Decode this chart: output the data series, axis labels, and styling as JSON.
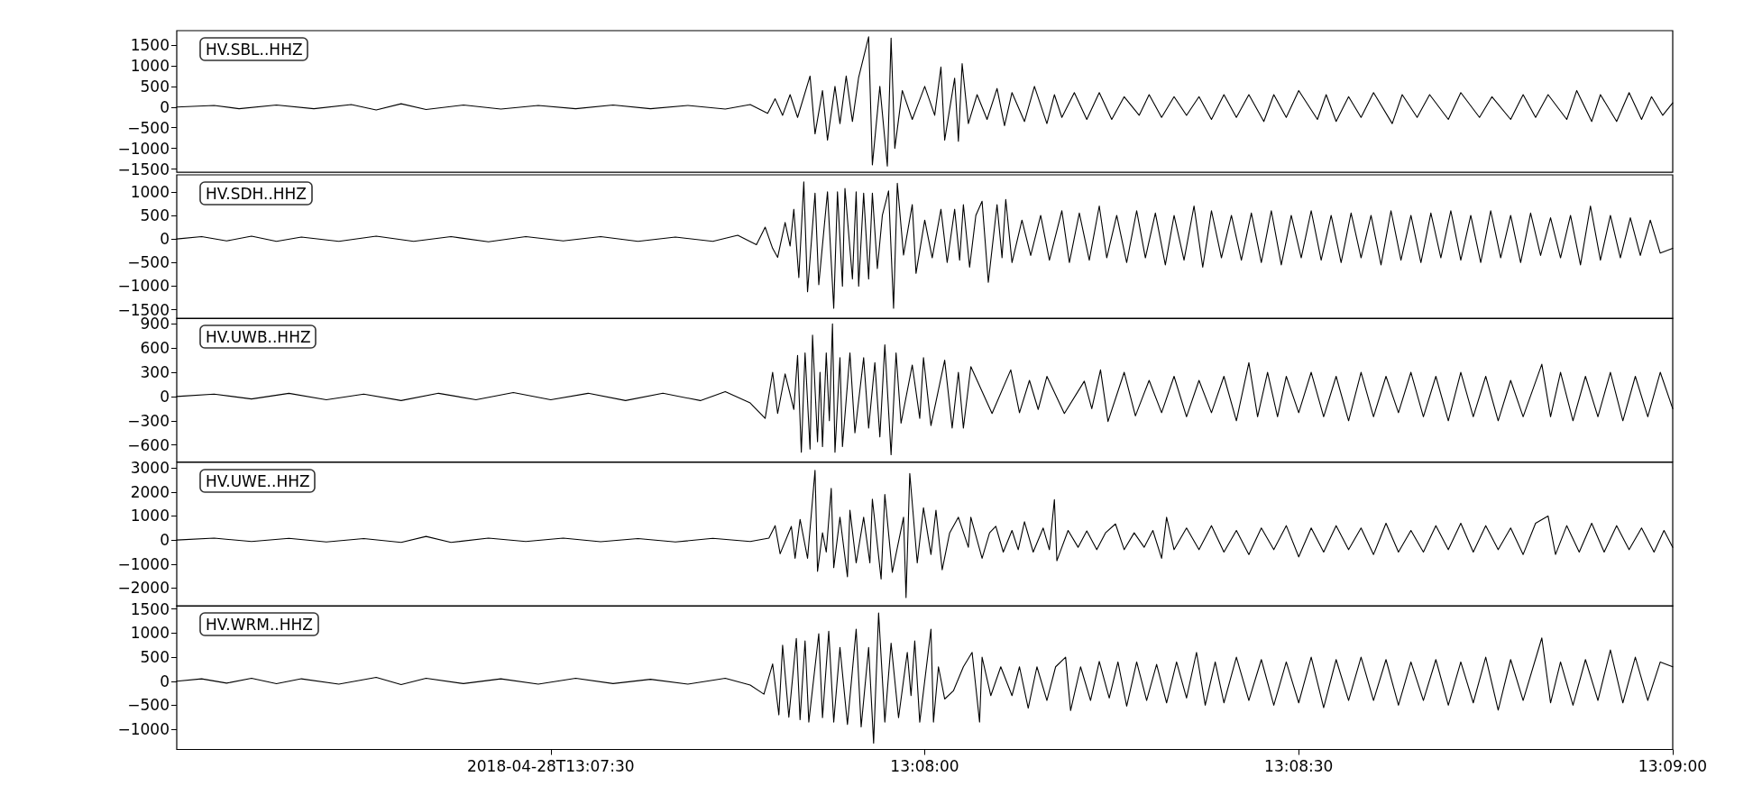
{
  "chart_data": [
    {
      "type": "line",
      "color": "#000000",
      "annotations": [
        "HV.SBL..HHZ"
      ],
      "tick_labels": "y",
      "xlim": [
        "2018-04-28T13:07:00",
        "2018-04-28T13:09:00"
      ],
      "ylim": [
        -1580,
        1850
      ],
      "yticks": [
        -1500,
        -1000,
        -500,
        0,
        500,
        1000,
        1500
      ],
      "x": [
        "2018-04-28T13:07:00",
        "2018-04-28T13:07:03",
        "2018-04-28T13:07:05",
        "2018-04-28T13:07:08",
        "2018-04-28T13:07:11",
        "2018-04-28T13:07:14",
        "2018-04-28T13:07:16",
        "2018-04-28T13:07:18",
        "2018-04-28T13:07:20",
        "2018-04-28T13:07:23",
        "2018-04-28T13:07:26",
        "2018-04-28T13:07:29",
        "2018-04-28T13:07:32",
        "2018-04-28T13:07:35",
        "2018-04-28T13:07:38",
        "2018-04-28T13:07:41",
        "2018-04-28T13:07:44",
        "2018-04-28T13:07:46",
        "2018-04-28T13:07:47.4",
        "2018-04-28T13:07:48",
        "2018-04-28T13:07:48.6",
        "2018-04-28T13:07:49.2",
        "2018-04-28T13:07:49.8",
        "2018-04-28T13:07:50.8",
        "2018-04-28T13:07:51.2",
        "2018-04-28T13:07:51.8",
        "2018-04-28T13:07:52.2",
        "2018-04-28T13:07:52.8",
        "2018-04-28T13:07:53.2",
        "2018-04-28T13:07:53.7",
        "2018-04-28T13:07:54.2",
        "2018-04-28T13:07:54.7",
        "2018-04-28T13:07:55.5",
        "2018-04-28T13:07:55.8",
        "2018-04-28T13:07:56.4",
        "2018-04-28T13:07:57",
        "2018-04-28T13:07:57.3",
        "2018-04-28T13:07:57.6",
        "2018-04-28T13:07:58.2",
        "2018-04-28T13:07:59",
        "2018-04-28T13:08:00",
        "2018-04-28T13:08:00.8",
        "2018-04-28T13:08:01.3",
        "2018-04-28T13:08:01.6",
        "2018-04-28T13:08:02.4",
        "2018-04-28T13:08:02.7",
        "2018-04-28T13:08:03",
        "2018-04-28T13:08:03.5",
        "2018-04-28T13:08:04.2",
        "2018-04-28T13:08:05",
        "2018-04-28T13:08:05.8",
        "2018-04-28T13:08:06.4",
        "2018-04-28T13:08:07",
        "2018-04-28T13:08:08",
        "2018-04-28T13:08:08.8",
        "2018-04-28T13:08:09.8",
        "2018-04-28T13:08:10.4",
        "2018-04-28T13:08:11",
        "2018-04-28T13:08:12",
        "2018-04-28T13:08:13",
        "2018-04-28T13:08:14",
        "2018-04-28T13:08:15",
        "2018-04-28T13:08:16",
        "2018-04-28T13:08:17.2",
        "2018-04-28T13:08:18",
        "2018-04-28T13:08:19",
        "2018-04-28T13:08:20",
        "2018-04-28T13:08:21",
        "2018-04-28T13:08:22",
        "2018-04-28T13:08:23",
        "2018-04-28T13:08:24",
        "2018-04-28T13:08:25",
        "2018-04-28T13:08:26",
        "2018-04-28T13:08:27.2",
        "2018-04-28T13:08:28",
        "2018-04-28T13:08:29",
        "2018-04-28T13:08:30",
        "2018-04-28T13:08:31.5",
        "2018-04-28T13:08:32.2",
        "2018-04-28T13:08:33",
        "2018-04-28T13:08:34",
        "2018-04-28T13:08:35",
        "2018-04-28T13:08:36",
        "2018-04-28T13:08:37.5",
        "2018-04-28T13:08:38.3",
        "2018-04-28T13:08:39.5",
        "2018-04-28T13:08:40.5",
        "2018-04-28T13:08:42",
        "2018-04-28T13:08:43",
        "2018-04-28T13:08:44.5",
        "2018-04-28T13:08:45.5",
        "2018-04-28T13:08:47",
        "2018-04-28T13:08:48",
        "2018-04-28T13:08:49",
        "2018-04-28T13:08:50",
        "2018-04-28T13:08:51.5",
        "2018-04-28T13:08:52.3",
        "2018-04-28T13:08:53.5",
        "2018-04-28T13:08:54.2",
        "2018-04-28T13:08:55.5",
        "2018-04-28T13:08:56.5",
        "2018-04-28T13:08:57.5",
        "2018-04-28T13:08:58.3",
        "2018-04-28T13:08:59.2",
        "2018-04-28T13:09:00"
      ],
      "values": [
        0,
        40,
        -40,
        50,
        -40,
        60,
        -70,
        80,
        -60,
        50,
        -50,
        40,
        -40,
        50,
        -40,
        40,
        -50,
        60,
        -150,
        200,
        -200,
        300,
        -250,
        750,
        -650,
        400,
        -800,
        500,
        -400,
        750,
        -350,
        720,
        1700,
        -1400,
        500,
        -1430,
        1670,
        -1000,
        400,
        -300,
        500,
        -200,
        970,
        -800,
        700,
        -830,
        1050,
        -400,
        300,
        -300,
        450,
        -450,
        350,
        -350,
        500,
        -400,
        300,
        -250,
        350,
        -300,
        350,
        -300,
        250,
        -200,
        300,
        -250,
        250,
        -200,
        250,
        -300,
        300,
        -250,
        300,
        -350,
        300,
        -250,
        400,
        -300,
        300,
        -350,
        250,
        -250,
        350,
        -400,
        300,
        -250,
        300,
        -300,
        350,
        -250,
        250,
        -300,
        300,
        -250,
        300,
        -300,
        400,
        -350,
        300,
        -350,
        350,
        -300,
        250,
        -200,
        100
      ]
    },
    {
      "type": "line",
      "color": "#000000",
      "annotations": [
        "HV.SDH..HHZ"
      ],
      "tick_labels": "y",
      "xlim": [
        "2018-04-28T13:07:00",
        "2018-04-28T13:09:00"
      ],
      "ylim": [
        -1690,
        1360
      ],
      "yticks": [
        -1500,
        -1000,
        -500,
        0,
        500,
        1000
      ],
      "x": [
        "2018-04-28T13:07:00",
        "2018-04-28T13:07:02",
        "2018-04-28T13:07:04",
        "2018-04-28T13:07:06",
        "2018-04-28T13:07:08",
        "2018-04-28T13:07:10",
        "2018-04-28T13:07:13",
        "2018-04-28T13:07:16",
        "2018-04-28T13:07:19",
        "2018-04-28T13:07:22",
        "2018-04-28T13:07:25",
        "2018-04-28T13:07:28",
        "2018-04-28T13:07:31",
        "2018-04-28T13:07:34",
        "2018-04-28T13:07:37",
        "2018-04-28T13:07:40",
        "2018-04-28T13:07:43",
        "2018-04-28T13:07:45",
        "2018-04-28T13:07:46.5",
        "2018-04-28T13:07:47.2",
        "2018-04-28T13:07:47.8",
        "2018-04-28T13:07:48.2",
        "2018-04-28T13:07:48.8",
        "2018-04-28T13:07:49.2",
        "2018-04-28T13:07:49.5",
        "2018-04-28T13:07:49.9",
        "2018-04-28T13:07:50.3",
        "2018-04-28T13:07:50.6",
        "2018-04-28T13:07:51.2",
        "2018-04-28T13:07:51.5",
        "2018-04-28T13:07:52.2",
        "2018-04-28T13:07:52.7",
        "2018-04-28T13:07:53",
        "2018-04-28T13:07:53.4",
        "2018-04-28T13:07:53.6",
        "2018-04-28T13:07:54.2",
        "2018-04-28T13:07:54.5",
        "2018-04-28T13:07:54.7",
        "2018-04-28T13:07:55.1",
        "2018-04-28T13:07:55.5",
        "2018-04-28T13:07:55.8",
        "2018-04-28T13:07:56.2",
        "2018-04-28T13:07:56.6",
        "2018-04-28T13:07:57.1",
        "2018-04-28T13:07:57.5",
        "2018-04-28T13:07:57.8",
        "2018-04-28T13:07:58.3",
        "2018-04-28T13:07:59",
        "2018-04-28T13:07:59.3",
        "2018-04-28T13:08:00",
        "2018-04-28T13:08:00.6",
        "2018-04-28T13:08:01.3",
        "2018-04-28T13:08:01.8",
        "2018-04-28T13:08:02.4",
        "2018-04-28T13:08:02.8",
        "2018-04-28T13:08:03.1",
        "2018-04-28T13:08:03.6",
        "2018-04-28T13:08:04.1",
        "2018-04-28T13:08:04.6",
        "2018-04-28T13:08:05.1",
        "2018-04-28T13:08:05.8",
        "2018-04-28T13:08:06.2",
        "2018-04-28T13:08:06.5",
        "2018-04-28T13:08:07",
        "2018-04-28T13:08:07.8",
        "2018-04-28T13:08:08.5",
        "2018-04-28T13:08:09.3",
        "2018-04-28T13:08:10",
        "2018-04-28T13:08:11",
        "2018-04-28T13:08:11.6",
        "2018-04-28T13:08:12.4",
        "2018-04-28T13:08:13.2",
        "2018-04-28T13:08:14",
        "2018-04-28T13:08:14.6",
        "2018-04-28T13:08:15.4",
        "2018-04-28T13:08:16.2",
        "2018-04-28T13:08:17",
        "2018-04-28T13:08:17.7",
        "2018-04-28T13:08:18.5",
        "2018-04-28T13:08:19.3",
        "2018-04-28T13:08:20",
        "2018-04-28T13:08:20.8",
        "2018-04-28T13:08:21.6",
        "2018-04-28T13:08:22.3",
        "2018-04-28T13:08:23",
        "2018-04-28T13:08:23.8",
        "2018-04-28T13:08:24.6",
        "2018-04-28T13:08:25.4",
        "2018-04-28T13:08:26.2",
        "2018-04-28T13:08:27",
        "2018-04-28T13:08:27.8",
        "2018-04-28T13:08:28.6",
        "2018-04-28T13:08:29.4",
        "2018-04-28T13:08:30.2",
        "2018-04-28T13:08:31",
        "2018-04-28T13:08:31.8",
        "2018-04-28T13:08:32.6",
        "2018-04-28T13:08:33.4",
        "2018-04-28T13:08:34.2",
        "2018-04-28T13:08:35",
        "2018-04-28T13:08:35.8",
        "2018-04-28T13:08:36.6",
        "2018-04-28T13:08:37.4",
        "2018-04-28T13:08:38.2",
        "2018-04-28T13:08:39",
        "2018-04-28T13:08:39.8",
        "2018-04-28T13:08:40.6",
        "2018-04-28T13:08:41.4",
        "2018-04-28T13:08:42.2",
        "2018-04-28T13:08:43",
        "2018-04-28T13:08:43.8",
        "2018-04-28T13:08:44.6",
        "2018-04-28T13:08:45.4",
        "2018-04-28T13:08:46.2",
        "2018-04-28T13:08:47",
        "2018-04-28T13:08:47.8",
        "2018-04-28T13:08:48.6",
        "2018-04-28T13:08:49.4",
        "2018-04-28T13:08:50.2",
        "2018-04-28T13:08:51",
        "2018-04-28T13:08:51.8",
        "2018-04-28T13:08:52.6",
        "2018-04-28T13:08:53.4",
        "2018-04-28T13:08:54.2",
        "2018-04-28T13:08:55",
        "2018-04-28T13:08:55.8",
        "2018-04-28T13:08:56.6",
        "2018-04-28T13:08:57.4",
        "2018-04-28T13:08:58.2",
        "2018-04-28T13:08:59",
        "2018-04-28T13:09:00"
      ],
      "values": [
        0,
        50,
        -40,
        60,
        -50,
        40,
        -50,
        60,
        -50,
        50,
        -60,
        50,
        -40,
        50,
        -50,
        40,
        -50,
        80,
        -120,
        250,
        -200,
        -390,
        350,
        -150,
        630,
        -820,
        1210,
        -1120,
        970,
        -970,
        1000,
        -1470,
        1000,
        -1000,
        1070,
        -850,
        1000,
        -1000,
        970,
        -850,
        970,
        -630,
        500,
        1020,
        -1470,
        1180,
        -340,
        730,
        -730,
        400,
        -400,
        630,
        -500,
        630,
        -450,
        730,
        -600,
        500,
        800,
        -920,
        730,
        -400,
        840,
        -500,
        400,
        -350,
        500,
        -450,
        600,
        -500,
        550,
        -450,
        700,
        -400,
        500,
        -500,
        600,
        -400,
        550,
        -550,
        500,
        -450,
        700,
        -600,
        600,
        -400,
        500,
        -450,
        550,
        -500,
        600,
        -550,
        500,
        -400,
        600,
        -450,
        500,
        -500,
        550,
        -400,
        500,
        -550,
        600,
        -450,
        500,
        -500,
        550,
        -400,
        600,
        -450,
        500,
        -500,
        600,
        -400,
        500,
        -500,
        550,
        -350,
        450,
        -400,
        500,
        -550,
        700,
        -450,
        500,
        -400,
        450,
        -350,
        400,
        -300,
        -200
      ]
    },
    {
      "type": "line",
      "color": "#000000",
      "annotations": [
        "HV.UWB..HHZ"
      ],
      "tick_labels": "y",
      "xlim": [
        "2018-04-28T13:07:00",
        "2018-04-28T13:09:00"
      ],
      "ylim": [
        -810,
        970
      ],
      "yticks": [
        -600,
        -300,
        0,
        300,
        600,
        900
      ],
      "x": [
        "2018-04-28T13:07:00",
        "2018-04-28T13:07:03",
        "2018-04-28T13:07:06",
        "2018-04-28T13:07:09",
        "2018-04-28T13:07:12",
        "2018-04-28T13:07:15",
        "2018-04-28T13:07:18",
        "2018-04-28T13:07:21",
        "2018-04-28T13:07:24",
        "2018-04-28T13:07:27",
        "2018-04-28T13:07:30",
        "2018-04-28T13:07:33",
        "2018-04-28T13:07:36",
        "2018-04-28T13:07:39",
        "2018-04-28T13:07:42",
        "2018-04-28T13:07:44",
        "2018-04-28T13:07:46",
        "2018-04-28T13:07:47.2",
        "2018-04-28T13:07:47.8",
        "2018-04-28T13:07:48.2",
        "2018-04-28T13:07:48.8",
        "2018-04-28T13:07:49.5",
        "2018-04-28T13:07:49.8",
        "2018-04-28T13:07:50.1",
        "2018-04-28T13:07:50.4",
        "2018-04-28T13:07:50.8",
        "2018-04-28T13:07:51",
        "2018-04-28T13:07:51.4",
        "2018-04-28T13:07:51.6",
        "2018-04-28T13:07:51.8",
        "2018-04-28T13:07:52.1",
        "2018-04-28T13:07:52.35",
        "2018-04-28T13:07:52.6",
        "2018-04-28T13:07:52.8",
        "2018-04-28T13:07:53.2",
        "2018-04-28T13:07:53.4",
        "2018-04-28T13:07:54",
        "2018-04-28T13:07:54.4",
        "2018-04-28T13:07:55.1",
        "2018-04-28T13:07:55.5",
        "2018-04-28T13:07:56",
        "2018-04-28T13:07:56.4",
        "2018-04-28T13:07:56.8",
        "2018-04-28T13:07:57.3",
        "2018-04-28T13:07:57.7",
        "2018-04-28T13:07:58.1",
        "2018-04-28T13:07:59",
        "2018-04-28T13:07:59.6",
        "2018-04-28T13:07:59.9",
        "2018-04-28T13:08:00.5",
        "2018-04-28T13:08:01.6",
        "2018-04-28T13:08:02.2",
        "2018-04-28T13:08:02.7",
        "2018-04-28T13:08:03.1",
        "2018-04-28T13:08:03.7",
        "2018-04-28T13:08:05.4",
        "2018-04-28T13:08:06.9",
        "2018-04-28T13:08:07.6",
        "2018-04-28T13:08:08.4",
        "2018-04-28T13:08:09.1",
        "2018-04-28T13:08:09.8",
        "2018-04-28T13:08:11.2",
        "2018-04-28T13:08:12.8",
        "2018-04-28T13:08:13.4",
        "2018-04-28T13:08:14.1",
        "2018-04-28T13:08:14.7",
        "2018-04-28T13:08:16",
        "2018-04-28T13:08:16.9",
        "2018-04-28T13:08:18",
        "2018-04-28T13:08:19",
        "2018-04-28T13:08:20",
        "2018-04-28T13:08:21",
        "2018-04-28T13:08:22",
        "2018-04-28T13:08:23",
        "2018-04-28T13:08:24",
        "2018-04-28T13:08:25",
        "2018-04-28T13:08:26",
        "2018-04-28T13:08:26.7",
        "2018-04-28T13:08:27.5",
        "2018-04-28T13:08:28.3",
        "2018-04-28T13:08:29",
        "2018-04-28T13:08:30",
        "2018-04-28T13:08:31",
        "2018-04-28T13:08:32",
        "2018-04-28T13:08:33",
        "2018-04-28T13:08:34",
        "2018-04-28T13:08:35",
        "2018-04-28T13:08:36",
        "2018-04-28T13:08:37",
        "2018-04-28T13:08:38",
        "2018-04-28T13:08:39",
        "2018-04-28T13:08:40",
        "2018-04-28T13:08:41",
        "2018-04-28T13:08:42",
        "2018-04-28T13:08:43",
        "2018-04-28T13:08:44",
        "2018-04-28T13:08:45",
        "2018-04-28T13:08:46",
        "2018-04-28T13:08:47",
        "2018-04-28T13:08:48",
        "2018-04-28T13:08:49.5",
        "2018-04-28T13:08:50.2",
        "2018-04-28T13:08:51",
        "2018-04-28T13:08:52",
        "2018-04-28T13:08:53",
        "2018-04-28T13:08:54",
        "2018-04-28T13:08:55",
        "2018-04-28T13:08:56",
        "2018-04-28T13:08:57",
        "2018-04-28T13:08:58",
        "2018-04-28T13:08:59",
        "2018-04-28T13:09:00"
      ],
      "values": [
        0,
        30,
        -30,
        40,
        -40,
        30,
        -50,
        40,
        -40,
        50,
        -40,
        40,
        -50,
        40,
        -50,
        60,
        -80,
        -270,
        300,
        -210,
        280,
        -160,
        510,
        -690,
        540,
        -650,
        760,
        -560,
        300,
        -620,
        540,
        -300,
        900,
        -690,
        480,
        -620,
        540,
        -450,
        480,
        -390,
        420,
        -500,
        640,
        -720,
        540,
        -330,
        390,
        -270,
        480,
        -360,
        450,
        -390,
        300,
        -390,
        370,
        -210,
        330,
        -200,
        200,
        -160,
        250,
        -210,
        190,
        -150,
        330,
        -310,
        300,
        -240,
        200,
        -200,
        250,
        -250,
        200,
        -200,
        250,
        -300,
        420,
        -250,
        300,
        -250,
        250,
        -200,
        300,
        -250,
        250,
        -300,
        300,
        -250,
        250,
        -200,
        300,
        -250,
        250,
        -300,
        300,
        -250,
        250,
        -300,
        200,
        -250,
        400,
        -250,
        300,
        -300,
        250,
        -250,
        300,
        -300,
        250,
        -250,
        300,
        -150
      ]
    },
    {
      "type": "line",
      "color": "#000000",
      "annotations": [
        "HV.UWE..HHZ"
      ],
      "tick_labels": "y",
      "xlim": [
        "2018-04-28T13:07:00",
        "2018-04-28T13:09:00"
      ],
      "ylim": [
        -2750,
        3230
      ],
      "yticks": [
        -2000,
        -1000,
        0,
        1000,
        2000,
        3000
      ],
      "x": [
        "2018-04-28T13:07:00",
        "2018-04-28T13:07:03",
        "2018-04-28T13:07:06",
        "2018-04-28T13:07:09",
        "2018-04-28T13:07:12",
        "2018-04-28T13:07:15",
        "2018-04-28T13:07:18",
        "2018-04-28T13:07:20",
        "2018-04-28T13:07:22",
        "2018-04-28T13:07:25",
        "2018-04-28T13:07:28",
        "2018-04-28T13:07:31",
        "2018-04-28T13:07:34",
        "2018-04-28T13:07:37",
        "2018-04-28T13:07:40",
        "2018-04-28T13:07:43",
        "2018-04-28T13:07:46",
        "2018-04-28T13:07:47.5",
        "2018-04-28T13:07:48",
        "2018-04-28T13:07:48.4",
        "2018-04-28T13:07:49.3",
        "2018-04-28T13:07:49.6",
        "2018-04-28T13:07:50",
        "2018-04-28T13:07:50.6",
        "2018-04-28T13:07:51.2",
        "2018-04-28T13:07:51.4",
        "2018-04-28T13:07:51.8",
        "2018-04-28T13:07:52.1",
        "2018-04-28T13:07:52.5",
        "2018-04-28T13:07:52.7",
        "2018-04-28T13:07:53.2",
        "2018-04-28T13:07:53.8",
        "2018-04-28T13:07:54",
        "2018-04-28T13:07:54.5",
        "2018-04-28T13:07:55.1",
        "2018-04-28T13:07:55.6",
        "2018-04-28T13:07:55.8",
        "2018-04-28T13:07:56.5",
        "2018-04-28T13:07:56.8",
        "2018-04-28T13:07:57.4",
        "2018-04-28T13:07:58.3",
        "2018-04-28T13:07:58.5",
        "2018-04-28T13:07:58.8",
        "2018-04-28T13:07:59.4",
        "2018-04-28T13:07:59.9",
        "2018-04-28T13:08:00.5",
        "2018-04-28T13:08:00.9",
        "2018-04-28T13:08:01.4",
        "2018-04-28T13:08:02",
        "2018-04-28T13:08:02.7",
        "2018-04-28T13:08:03.5",
        "2018-04-28T13:08:03.7",
        "2018-04-28T13:08:04.6",
        "2018-04-28T13:08:05.2",
        "2018-04-28T13:08:05.7",
        "2018-04-28T13:08:06.3",
        "2018-04-28T13:08:07",
        "2018-04-28T13:08:07.5",
        "2018-04-28T13:08:08",
        "2018-04-28T13:08:08.7",
        "2018-04-28T13:08:09.5",
        "2018-04-28T13:08:10",
        "2018-04-28T13:08:10.4",
        "2018-04-28T13:08:10.6",
        "2018-04-28T13:08:11.5",
        "2018-04-28T13:08:12.3",
        "2018-04-28T13:08:13",
        "2018-04-28T13:08:13.8",
        "2018-04-28T13:08:14.5",
        "2018-04-28T13:08:15.3",
        "2018-04-28T13:08:16",
        "2018-04-28T13:08:16.8",
        "2018-04-28T13:08:17.6",
        "2018-04-28T13:08:18.3",
        "2018-04-28T13:08:19",
        "2018-04-28T13:08:19.4",
        "2018-04-28T13:08:20",
        "2018-04-28T13:08:21",
        "2018-04-28T13:08:22",
        "2018-04-28T13:08:23",
        "2018-04-28T13:08:24",
        "2018-04-28T13:08:25",
        "2018-04-28T13:08:26",
        "2018-04-28T13:08:27",
        "2018-04-28T13:08:28",
        "2018-04-28T13:08:29",
        "2018-04-28T13:08:30",
        "2018-04-28T13:08:31",
        "2018-04-28T13:08:32",
        "2018-04-28T13:08:33",
        "2018-04-28T13:08:34",
        "2018-04-28T13:08:35",
        "2018-04-28T13:08:36",
        "2018-04-28T13:08:37",
        "2018-04-28T13:08:38",
        "2018-04-28T13:08:39",
        "2018-04-28T13:08:40",
        "2018-04-28T13:08:41",
        "2018-04-28T13:08:42",
        "2018-04-28T13:08:43",
        "2018-04-28T13:08:44",
        "2018-04-28T13:08:45",
        "2018-04-28T13:08:46",
        "2018-04-28T13:08:47",
        "2018-04-28T13:08:48",
        "2018-04-28T13:08:49",
        "2018-04-28T13:08:50",
        "2018-04-28T13:08:50.6",
        "2018-04-28T13:08:51.5",
        "2018-04-28T13:08:52.5",
        "2018-04-28T13:08:53.5",
        "2018-04-28T13:08:54.5",
        "2018-04-28T13:08:55.5",
        "2018-04-28T13:08:56.5",
        "2018-04-28T13:08:57.5",
        "2018-04-28T13:08:58.5",
        "2018-04-28T13:08:59.3",
        "2018-04-28T13:09:00"
      ],
      "values": [
        0,
        80,
        -60,
        70,
        -80,
        60,
        -100,
        150,
        -100,
        80,
        -60,
        80,
        -70,
        60,
        -80,
        70,
        -60,
        80,
        600,
        -570,
        570,
        -760,
        860,
        -760,
        2900,
        -1300,
        300,
        -500,
        2150,
        -1150,
        950,
        -1530,
        1240,
        -950,
        950,
        -950,
        1700,
        -1620,
        1900,
        -1340,
        950,
        -2390,
        2770,
        -950,
        1340,
        -600,
        1240,
        -1240,
        300,
        950,
        -300,
        950,
        -760,
        300,
        570,
        -500,
        400,
        -400,
        760,
        -500,
        500,
        -400,
        1680,
        -860,
        400,
        -300,
        380,
        -400,
        300,
        670,
        -400,
        300,
        -300,
        400,
        -760,
        950,
        -400,
        500,
        -400,
        600,
        -500,
        400,
        -600,
        500,
        -400,
        600,
        -700,
        500,
        -500,
        600,
        -400,
        500,
        -600,
        700,
        -500,
        400,
        -500,
        600,
        -400,
        700,
        -500,
        600,
        -400,
        500,
        -600,
        700,
        1000,
        -600,
        600,
        -500,
        700,
        -500,
        600,
        -400,
        500,
        -500,
        400,
        -300
      ]
    },
    {
      "type": "line",
      "color": "#000000",
      "annotations": [
        "HV.WRM..HHZ"
      ],
      "xlim": [
        "2018-04-28T13:07:00",
        "2018-04-28T13:09:00"
      ],
      "xticks": [
        {
          "value": "2018-04-28T13:07:30",
          "label": "2018-04-28T13:07:30"
        },
        {
          "value": "2018-04-28T13:08:00",
          "label": "13:08:00"
        },
        {
          "value": "2018-04-28T13:08:30",
          "label": "13:08:30"
        },
        {
          "value": "2018-04-28T13:09:00",
          "label": "13:09:00"
        }
      ],
      "ylim": [
        -1420,
        1570
      ],
      "yticks": [
        -1000,
        -500,
        0,
        500,
        1000,
        1500
      ],
      "x": [
        "2018-04-28T13:07:00",
        "2018-04-28T13:07:02",
        "2018-04-28T13:07:04",
        "2018-04-28T13:07:06",
        "2018-04-28T13:07:08",
        "2018-04-28T13:07:10",
        "2018-04-28T13:07:13",
        "2018-04-28T13:07:16",
        "2018-04-28T13:07:18",
        "2018-04-28T13:07:20",
        "2018-04-28T13:07:23",
        "2018-04-28T13:07:26",
        "2018-04-28T13:07:29",
        "2018-04-28T13:07:32",
        "2018-04-28T13:07:35",
        "2018-04-28T13:07:38",
        "2018-04-28T13:07:41",
        "2018-04-28T13:07:44",
        "2018-04-28T13:07:46",
        "2018-04-28T13:07:47.1",
        "2018-04-28T13:07:47.8",
        "2018-04-28T13:07:48.3",
        "2018-04-28T13:07:48.6",
        "2018-04-28T13:07:49.1",
        "2018-04-28T13:07:49.7",
        "2018-04-28T13:07:50",
        "2018-04-28T13:07:50.4",
        "2018-04-28T13:07:50.7",
        "2018-04-28T13:07:51.5",
        "2018-04-28T13:07:51.8",
        "2018-04-28T13:07:52.3",
        "2018-04-28T13:07:52.7",
        "2018-04-28T13:07:53.2",
        "2018-04-28T13:07:53.8",
        "2018-04-28T13:07:54.5",
        "2018-04-28T13:07:54.9",
        "2018-04-28T13:07:55.5",
        "2018-04-28T13:07:55.9",
        "2018-04-28T13:07:56.3",
        "2018-04-28T13:07:56.8",
        "2018-04-28T13:07:57.3",
        "2018-04-28T13:07:57.9",
        "2018-04-28T13:07:58.6",
        "2018-04-28T13:07:58.9",
        "2018-04-28T13:07:59.2",
        "2018-04-28T13:07:59.6",
        "2018-04-28T13:08:00.5",
        "2018-04-28T13:08:00.7",
        "2018-04-28T13:08:01.1",
        "2018-04-28T13:08:01.6",
        "2018-04-28T13:08:02.3",
        "2018-04-28T13:08:03.1",
        "2018-04-28T13:08:03.8",
        "2018-04-28T13:08:04.4",
        "2018-04-28T13:08:04.6",
        "2018-04-28T13:08:05.3",
        "2018-04-28T13:08:06.1",
        "2018-04-28T13:08:07",
        "2018-04-28T13:08:07.6",
        "2018-04-28T13:08:08.3",
        "2018-04-28T13:08:09",
        "2018-04-28T13:08:09.8",
        "2018-04-28T13:08:10.5",
        "2018-04-28T13:08:11.3",
        "2018-04-28T13:08:11.7",
        "2018-04-28T13:08:12.5",
        "2018-04-28T13:08:13.3",
        "2018-04-28T13:08:14",
        "2018-04-28T13:08:14.8",
        "2018-04-28T13:08:15.5",
        "2018-04-28T13:08:16.2",
        "2018-04-28T13:08:17",
        "2018-04-28T13:08:17.8",
        "2018-04-28T13:08:18.6",
        "2018-04-28T13:08:19.4",
        "2018-04-28T13:08:20.2",
        "2018-04-28T13:08:21",
        "2018-04-28T13:08:21.8",
        "2018-04-28T13:08:22.5",
        "2018-04-28T13:08:23.3",
        "2018-04-28T13:08:24",
        "2018-04-28T13:08:25",
        "2018-04-28T13:08:26",
        "2018-04-28T13:08:27",
        "2018-04-28T13:08:28",
        "2018-04-28T13:08:29",
        "2018-04-28T13:08:30",
        "2018-04-28T13:08:31",
        "2018-04-28T13:08:32",
        "2018-04-28T13:08:33",
        "2018-04-28T13:08:34",
        "2018-04-28T13:08:35",
        "2018-04-28T13:08:36",
        "2018-04-28T13:08:37",
        "2018-04-28T13:08:38",
        "2018-04-28T13:08:39",
        "2018-04-28T13:08:40",
        "2018-04-28T13:08:41",
        "2018-04-28T13:08:42",
        "2018-04-28T13:08:43",
        "2018-04-28T13:08:44",
        "2018-04-28T13:08:45",
        "2018-04-28T13:08:46",
        "2018-04-28T13:08:47",
        "2018-04-28T13:08:48",
        "2018-04-28T13:08:49.5",
        "2018-04-28T13:08:50.2",
        "2018-04-28T13:08:51",
        "2018-04-28T13:08:52",
        "2018-04-28T13:08:53",
        "2018-04-28T13:08:54",
        "2018-04-28T13:08:55",
        "2018-04-28T13:08:56",
        "2018-04-28T13:08:57",
        "2018-04-28T13:08:58",
        "2018-04-28T13:08:59",
        "2018-04-28T13:09:00"
      ],
      "values": [
        0,
        50,
        -40,
        60,
        -50,
        50,
        -60,
        80,
        -70,
        60,
        -50,
        50,
        -60,
        60,
        -50,
        40,
        -60,
        60,
        -80,
        -270,
        360,
        -700,
        750,
        -750,
        890,
        -800,
        840,
        -850,
        990,
        -760,
        1040,
        -850,
        700,
        -900,
        1080,
        -950,
        700,
        -1290,
        1420,
        -850,
        790,
        -760,
        600,
        -300,
        840,
        -850,
        1080,
        -850,
        300,
        -370,
        -200,
        300,
        600,
        -850,
        500,
        -300,
        300,
        -300,
        300,
        -560,
        300,
        -400,
        300,
        500,
        -610,
        300,
        -400,
        410,
        -350,
        400,
        -520,
        400,
        -400,
        350,
        -450,
        400,
        -350,
        600,
        -500,
        400,
        -450,
        500,
        -400,
        450,
        -500,
        400,
        -450,
        500,
        -550,
        450,
        -400,
        500,
        -400,
        450,
        -500,
        400,
        -400,
        450,
        -500,
        400,
        -450,
        500,
        -600,
        450,
        -400,
        900,
        -450,
        400,
        -500,
        450,
        -400,
        650,
        -450,
        500,
        -400,
        400,
        300
      ]
    }
  ]
}
